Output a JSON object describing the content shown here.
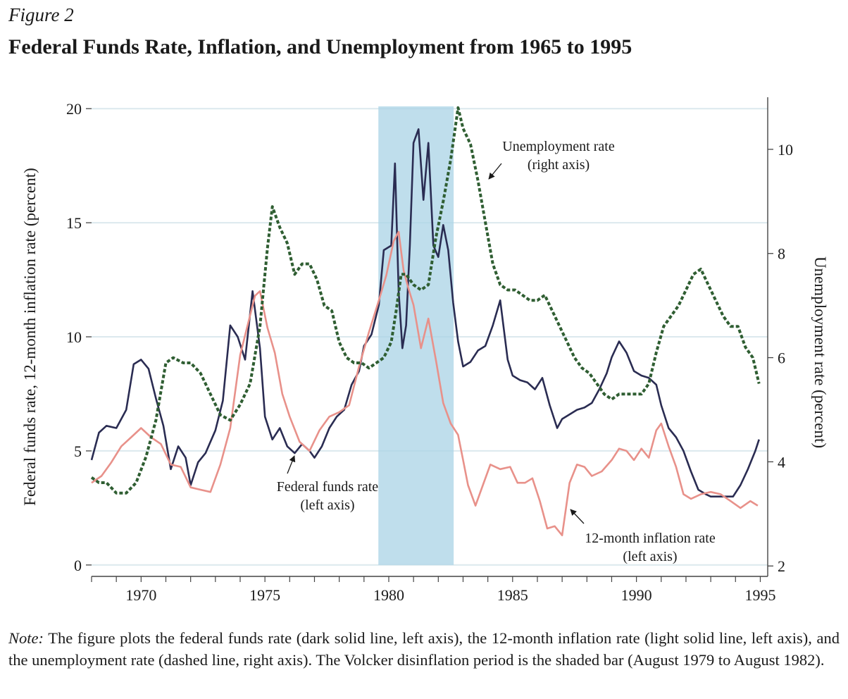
{
  "figure_label": "Figure 2",
  "figure_title": "Federal Funds Rate, Inflation, and Unemployment from 1965 to 1995",
  "note": {
    "label": "Note:",
    "text": " The figure plots the federal funds rate (dark solid line, left axis), the 12-month inflation rate (light solid line, left axis), and the unemployment rate (dashed line, right axis). The Volcker disinflation period is the shaded bar (August 1979 to August 1982)."
  },
  "chart_data": {
    "type": "line",
    "x_ticks": [
      "1970",
      "1975",
      "1980",
      "1985",
      "1990",
      "1995"
    ],
    "xlim": [
      1968,
      1995.3
    ],
    "left_axis": {
      "label": "Federal funds rate, 12-month inflation rate (percent)",
      "ticks": [
        "0",
        "5",
        "10",
        "15",
        "20"
      ],
      "ylim": [
        -0.5,
        20.5
      ]
    },
    "right_axis": {
      "label": "Unemployment rate (percent)",
      "ticks": [
        "2",
        "4",
        "6",
        "8",
        "10"
      ],
      "ylim": [
        1.8,
        11
      ]
    },
    "grid": "horizontal",
    "shaded_period": {
      "start": 1979.58,
      "end": 1982.62
    },
    "colors": {
      "fedfunds": "#2a2c52",
      "inflation": "#e8918a",
      "unemployment": "#2f5e32",
      "shade": "#a9d3e6",
      "grid": "#dce9ee"
    },
    "series": [
      {
        "name": "Federal funds rate",
        "axis": "left",
        "x": [
          1968.0,
          1968.3,
          1968.6,
          1969.0,
          1969.4,
          1969.7,
          1970.0,
          1970.3,
          1970.6,
          1970.9,
          1971.2,
          1971.5,
          1971.8,
          1972.0,
          1972.3,
          1972.6,
          1973.0,
          1973.3,
          1973.6,
          1973.9,
          1974.2,
          1974.5,
          1974.8,
          1975.0,
          1975.3,
          1975.6,
          1975.9,
          1976.2,
          1976.5,
          1976.8,
          1977.0,
          1977.3,
          1977.6,
          1977.9,
          1978.2,
          1978.5,
          1978.8,
          1979.0,
          1979.3,
          1979.6,
          1979.8,
          1980.1,
          1980.25,
          1980.4,
          1980.55,
          1980.7,
          1980.85,
          1981.0,
          1981.2,
          1981.4,
          1981.6,
          1981.8,
          1982.0,
          1982.2,
          1982.4,
          1982.6,
          1982.8,
          1983.0,
          1983.3,
          1983.6,
          1983.9,
          1984.2,
          1984.5,
          1984.8,
          1985.0,
          1985.3,
          1985.6,
          1985.9,
          1986.2,
          1986.5,
          1986.8,
          1987.0,
          1987.3,
          1987.6,
          1987.9,
          1988.2,
          1988.5,
          1988.8,
          1989.0,
          1989.3,
          1989.6,
          1989.9,
          1990.2,
          1990.5,
          1990.8,
          1991.0,
          1991.3,
          1991.6,
          1991.9,
          1992.2,
          1992.5,
          1992.8,
          1993.0,
          1993.3,
          1993.6,
          1993.9,
          1994.2,
          1994.5,
          1994.8,
          1994.95
        ],
        "values": [
          4.6,
          5.8,
          6.1,
          6.0,
          6.8,
          8.8,
          9.0,
          8.6,
          7.3,
          6.1,
          4.2,
          5.2,
          4.7,
          3.5,
          4.5,
          4.9,
          5.9,
          7.2,
          10.5,
          10.0,
          9.0,
          12.0,
          9.5,
          6.5,
          5.5,
          6.0,
          5.2,
          4.9,
          5.3,
          5.0,
          4.7,
          5.2,
          6.0,
          6.5,
          6.8,
          7.9,
          8.5,
          9.6,
          10.1,
          11.4,
          13.8,
          14.0,
          17.6,
          12.0,
          9.5,
          10.5,
          14.0,
          18.5,
          19.1,
          16.0,
          18.5,
          14.0,
          13.5,
          14.9,
          13.8,
          11.5,
          9.8,
          8.7,
          8.9,
          9.4,
          9.6,
          10.5,
          11.6,
          9.0,
          8.3,
          8.1,
          8.0,
          7.7,
          8.2,
          7.0,
          6.0,
          6.4,
          6.6,
          6.8,
          6.9,
          7.1,
          7.7,
          8.4,
          9.1,
          9.8,
          9.3,
          8.5,
          8.3,
          8.2,
          7.9,
          7.0,
          6.0,
          5.6,
          5.0,
          4.1,
          3.3,
          3.1,
          3.0,
          3.0,
          3.0,
          3.0,
          3.5,
          4.2,
          5.0,
          5.5
        ]
      },
      {
        "name": "12-month inflation rate",
        "axis": "left",
        "x": [
          1968.0,
          1968.4,
          1968.8,
          1969.2,
          1969.6,
          1970.0,
          1970.4,
          1970.8,
          1971.2,
          1971.6,
          1972.0,
          1972.4,
          1972.8,
          1973.2,
          1973.6,
          1974.0,
          1974.3,
          1974.6,
          1974.8,
          1975.1,
          1975.4,
          1975.7,
          1976.0,
          1976.4,
          1976.8,
          1977.2,
          1977.6,
          1978.0,
          1978.4,
          1978.8,
          1979.2,
          1979.6,
          1979.9,
          1980.2,
          1980.4,
          1980.6,
          1980.8,
          1981.0,
          1981.3,
          1981.6,
          1981.9,
          1982.2,
          1982.5,
          1982.8,
          1983.0,
          1983.2,
          1983.5,
          1983.8,
          1984.1,
          1984.5,
          1984.9,
          1985.2,
          1985.5,
          1985.8,
          1986.1,
          1986.4,
          1986.7,
          1987.0,
          1987.3,
          1987.6,
          1987.9,
          1988.2,
          1988.6,
          1989.0,
          1989.3,
          1989.6,
          1989.9,
          1990.2,
          1990.5,
          1990.8,
          1991.0,
          1991.3,
          1991.6,
          1991.9,
          1992.2,
          1992.6,
          1993.0,
          1993.4,
          1993.8,
          1994.2,
          1994.6,
          1994.9
        ],
        "values": [
          3.6,
          3.9,
          4.5,
          5.2,
          5.6,
          6.0,
          5.6,
          5.3,
          4.4,
          4.3,
          3.4,
          3.3,
          3.2,
          4.4,
          6.0,
          9.2,
          10.5,
          11.8,
          12.0,
          10.4,
          9.3,
          7.5,
          6.5,
          5.4,
          5.0,
          5.9,
          6.5,
          6.7,
          7.0,
          8.7,
          10.2,
          11.6,
          12.7,
          14.2,
          14.6,
          12.9,
          12.1,
          11.4,
          9.5,
          10.8,
          9.0,
          7.1,
          6.2,
          5.7,
          4.6,
          3.5,
          2.6,
          3.5,
          4.4,
          4.2,
          4.3,
          3.6,
          3.6,
          3.8,
          2.8,
          1.6,
          1.7,
          1.3,
          3.6,
          4.4,
          4.3,
          3.9,
          4.1,
          4.6,
          5.1,
          5.0,
          4.6,
          5.1,
          4.7,
          5.9,
          6.2,
          5.2,
          4.3,
          3.1,
          2.9,
          3.1,
          3.2,
          3.1,
          2.8,
          2.5,
          2.8,
          2.6
        ]
      },
      {
        "name": "Unemployment rate",
        "axis": "right",
        "x": [
          1968.0,
          1968.3,
          1968.6,
          1969.0,
          1969.4,
          1969.8,
          1970.2,
          1970.6,
          1971.0,
          1971.3,
          1971.7,
          1972.0,
          1972.4,
          1972.8,
          1973.2,
          1973.6,
          1974.0,
          1974.4,
          1974.8,
          1975.1,
          1975.3,
          1975.6,
          1975.9,
          1976.2,
          1976.5,
          1976.8,
          1977.1,
          1977.4,
          1977.7,
          1978.0,
          1978.3,
          1978.6,
          1978.9,
          1979.2,
          1979.5,
          1979.8,
          1980.1,
          1980.3,
          1980.5,
          1980.7,
          1981.0,
          1981.3,
          1981.6,
          1981.9,
          1982.2,
          1982.5,
          1982.8,
          1983.0,
          1983.3,
          1983.6,
          1983.9,
          1984.2,
          1984.5,
          1984.8,
          1985.1,
          1985.4,
          1985.7,
          1986.0,
          1986.3,
          1986.6,
          1986.9,
          1987.2,
          1987.5,
          1987.8,
          1988.1,
          1988.4,
          1988.7,
          1989.0,
          1989.3,
          1989.6,
          1989.9,
          1990.2,
          1990.5,
          1990.8,
          1991.1,
          1991.4,
          1991.7,
          1992.0,
          1992.3,
          1992.6,
          1992.9,
          1993.2,
          1993.5,
          1993.8,
          1994.1,
          1994.4,
          1994.7,
          1994.95
        ],
        "values": [
          3.7,
          3.6,
          3.6,
          3.4,
          3.4,
          3.6,
          4.1,
          4.8,
          5.9,
          6.0,
          5.9,
          5.9,
          5.7,
          5.3,
          4.9,
          4.8,
          5.1,
          5.5,
          6.6,
          8.1,
          8.9,
          8.5,
          8.2,
          7.6,
          7.8,
          7.8,
          7.5,
          7.0,
          6.9,
          6.3,
          6.0,
          5.9,
          5.9,
          5.8,
          5.9,
          6.0,
          6.3,
          6.9,
          7.6,
          7.6,
          7.4,
          7.3,
          7.4,
          8.3,
          9.0,
          9.8,
          10.8,
          10.4,
          10.1,
          9.4,
          8.6,
          7.8,
          7.4,
          7.3,
          7.3,
          7.2,
          7.1,
          7.1,
          7.2,
          6.9,
          6.6,
          6.3,
          6.0,
          5.8,
          5.7,
          5.5,
          5.3,
          5.2,
          5.3,
          5.3,
          5.3,
          5.3,
          5.5,
          6.1,
          6.6,
          6.8,
          7.0,
          7.3,
          7.6,
          7.7,
          7.4,
          7.1,
          6.8,
          6.6,
          6.6,
          6.2,
          6.0,
          5.5
        ]
      }
    ]
  },
  "annotations": {
    "unemployment": {
      "line1": "Unemployment rate",
      "line2": "(right axis)"
    },
    "fedfunds": {
      "line1": "Federal funds rate",
      "line2": "(left axis)"
    },
    "inflation": {
      "line1": "12-month inflation rate",
      "line2": "(left axis)"
    }
  }
}
